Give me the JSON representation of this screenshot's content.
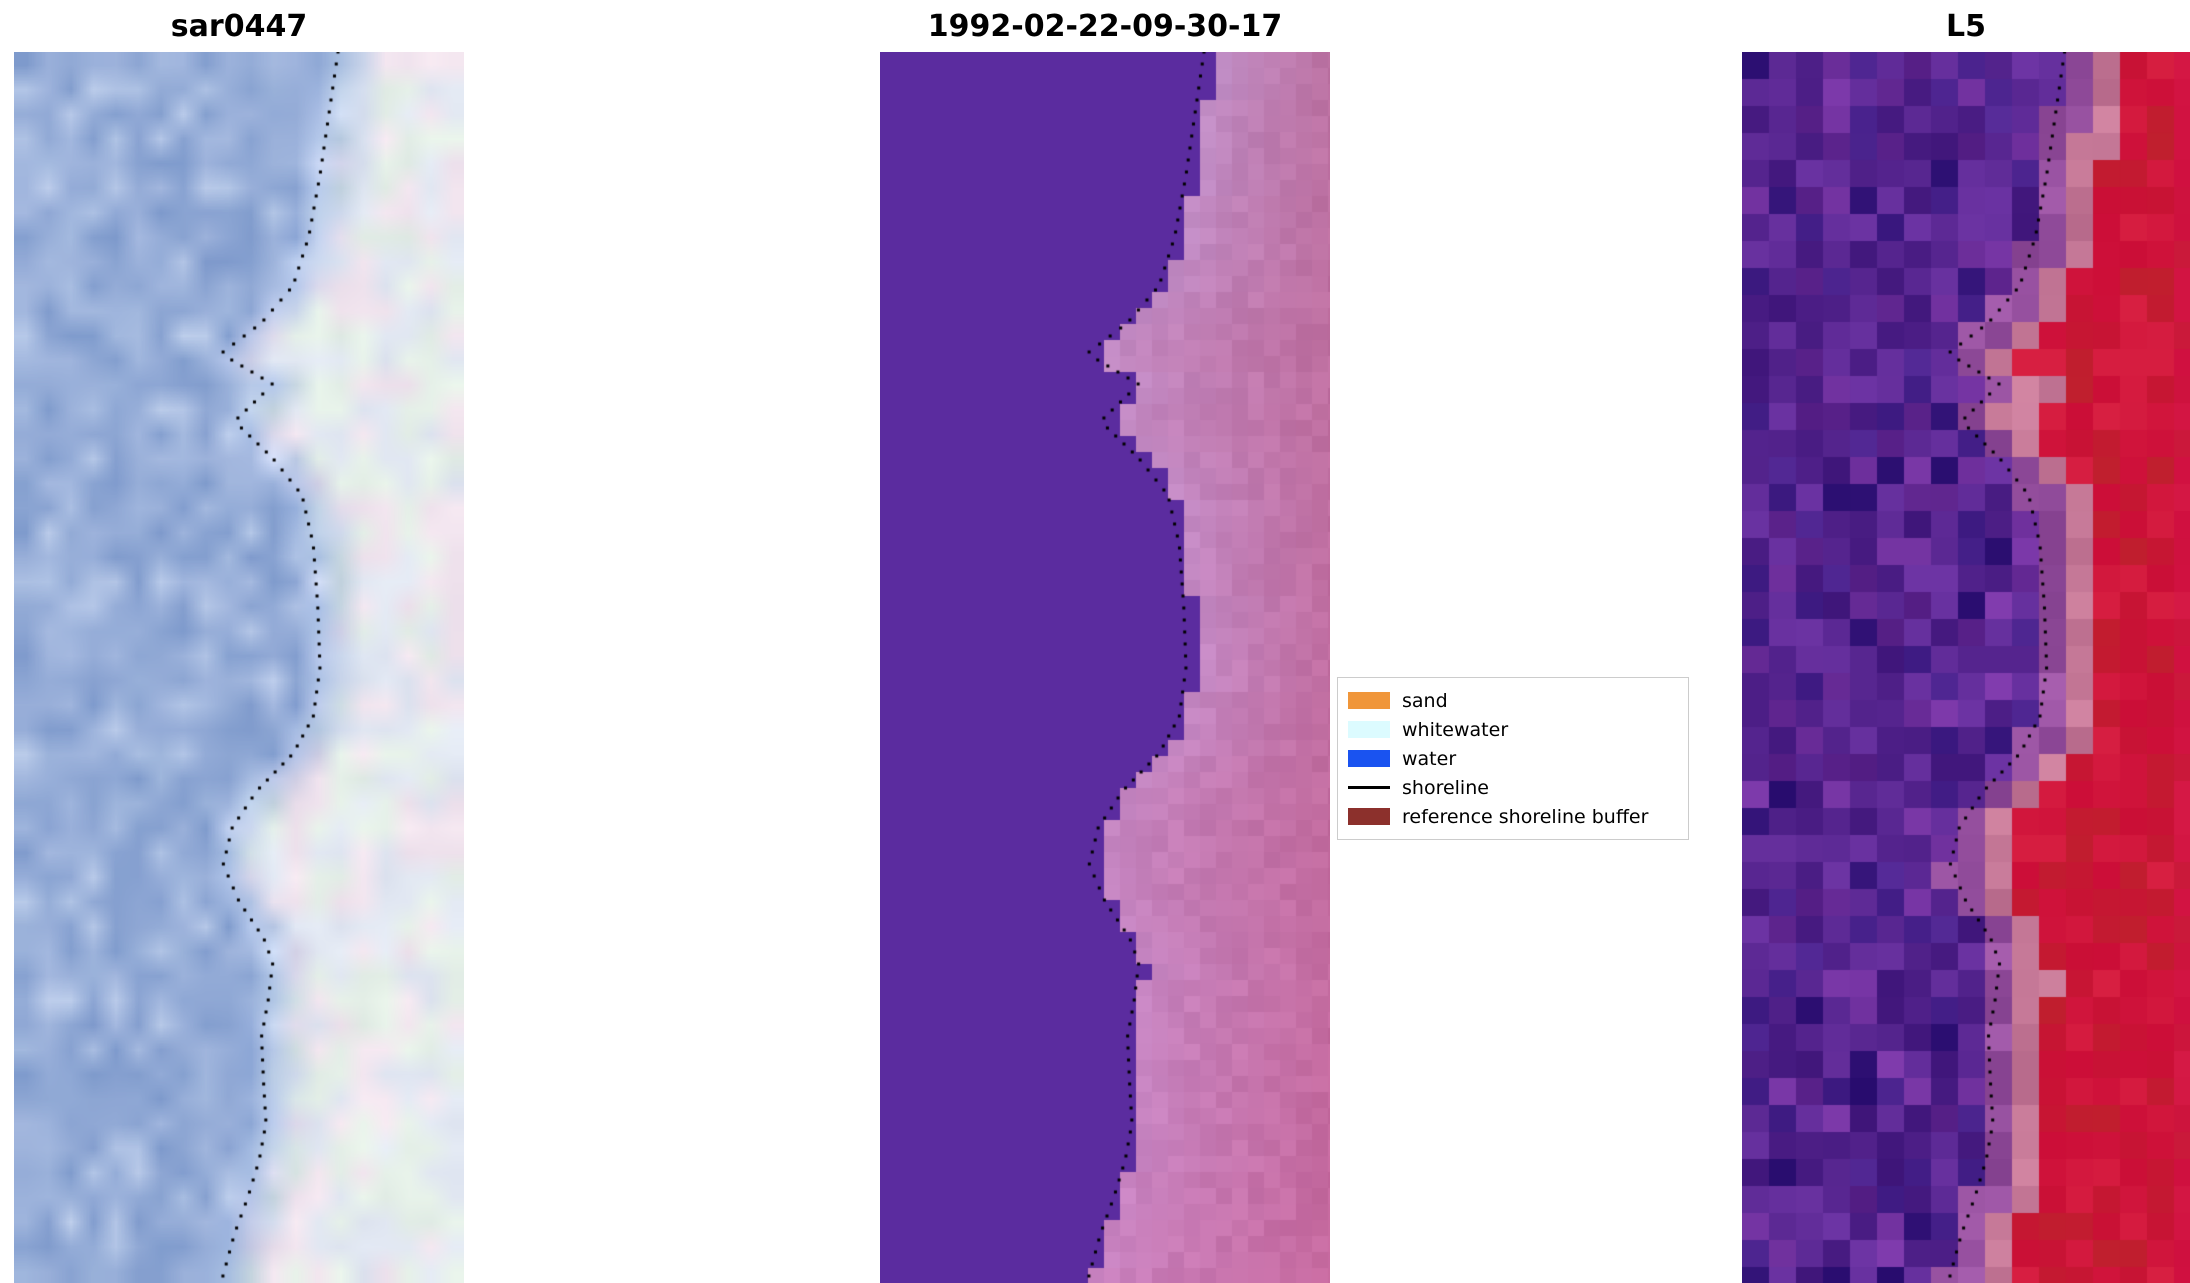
{
  "figure": {
    "background": "#ffffff",
    "panels": [
      {
        "id": "sar0447",
        "title": "sar0447",
        "render": "sar",
        "seed": 7,
        "palette": {
          "water": "#92aad6",
          "land": "#eaedf3",
          "tint_pink": "#f2e5ef",
          "tint_green": "#e5f0e8",
          "tint_blue": "#e2e8f3"
        }
      },
      {
        "id": "classified",
        "title": "1992-02-22-09-30-17",
        "render": "classified",
        "seed": 11,
        "cell": 16,
        "palette": {
          "left_purple": "#5b2c9f",
          "pink_near": "#c08cc4",
          "pink_far": "#bc6f9e"
        }
      },
      {
        "id": "l5",
        "title": "L5",
        "render": "l5",
        "seed": 23,
        "cell": 27,
        "palette": {
          "purple": "#56258f",
          "mauve": "#96509f",
          "pink": "#c57897",
          "red": "#cc0e38",
          "red_edge": "#d01040"
        }
      }
    ],
    "legend": {
      "items": [
        {
          "label": "sand",
          "color": "#f0963a",
          "swatch": "rect"
        },
        {
          "label": "whitewater",
          "color": "#dcfbff",
          "swatch": "rect"
        },
        {
          "label": "water",
          "color": "#1a53f0",
          "swatch": "rect"
        },
        {
          "label": "shoreline",
          "color": "#000000",
          "swatch": "line"
        },
        {
          "label": "reference shoreline buffer",
          "color": "#8c302c",
          "swatch": "rect"
        }
      ]
    },
    "shoreline": {
      "color": "#000000",
      "dot_size": 3,
      "dot_spacing": 11,
      "profile": [
        [
          0.0,
          0.72
        ],
        [
          0.05,
          0.7
        ],
        [
          0.1,
          0.68
        ],
        [
          0.15,
          0.655
        ],
        [
          0.19,
          0.62
        ],
        [
          0.22,
          0.55
        ],
        [
          0.245,
          0.46
        ],
        [
          0.27,
          0.575
        ],
        [
          0.3,
          0.49
        ],
        [
          0.33,
          0.575
        ],
        [
          0.36,
          0.64
        ],
        [
          0.4,
          0.665
        ],
        [
          0.45,
          0.675
        ],
        [
          0.5,
          0.68
        ],
        [
          0.54,
          0.665
        ],
        [
          0.57,
          0.62
        ],
        [
          0.6,
          0.54
        ],
        [
          0.63,
          0.485
        ],
        [
          0.66,
          0.465
        ],
        [
          0.69,
          0.5
        ],
        [
          0.72,
          0.555
        ],
        [
          0.74,
          0.575
        ],
        [
          0.77,
          0.565
        ],
        [
          0.8,
          0.55
        ],
        [
          0.84,
          0.555
        ],
        [
          0.87,
          0.56
        ],
        [
          0.9,
          0.545
        ],
        [
          0.93,
          0.52
        ],
        [
          0.96,
          0.49
        ],
        [
          1.0,
          0.46
        ]
      ]
    }
  },
  "chart_data": {
    "type": "heatmap",
    "title": "",
    "subplots": [
      {
        "title": "sar0447",
        "content": "SAR backscatter satellite image: pale blue water on the left, near-white land/beach on the right, black dotted detected shoreline meandering vertically"
      },
      {
        "title": "1992-02-22-09-30-17",
        "content": "Classified optical image: flat purple water region on the left, stepped blocky boundary to a pink/mauve reference shoreline buffer region on the right, black dotted shoreline along the boundary"
      },
      {
        "title": "L5",
        "content": "Landsat 5 false-color image: noisy dark purple water on the left, crimson red land on the right, pink transition band, black dotted shoreline"
      }
    ],
    "legend_entries": [
      "sand",
      "whitewater",
      "water",
      "shoreline",
      "reference shoreline buffer"
    ],
    "legend_position": "center, right of middle panel",
    "shoreline_x_fraction_by_y_fraction": [
      [
        0.0,
        0.72
      ],
      [
        0.1,
        0.68
      ],
      [
        0.19,
        0.62
      ],
      [
        0.245,
        0.46
      ],
      [
        0.3,
        0.49
      ],
      [
        0.36,
        0.64
      ],
      [
        0.5,
        0.68
      ],
      [
        0.6,
        0.54
      ],
      [
        0.66,
        0.465
      ],
      [
        0.74,
        0.575
      ],
      [
        0.84,
        0.555
      ],
      [
        0.93,
        0.52
      ],
      [
        1.0,
        0.46
      ]
    ]
  }
}
